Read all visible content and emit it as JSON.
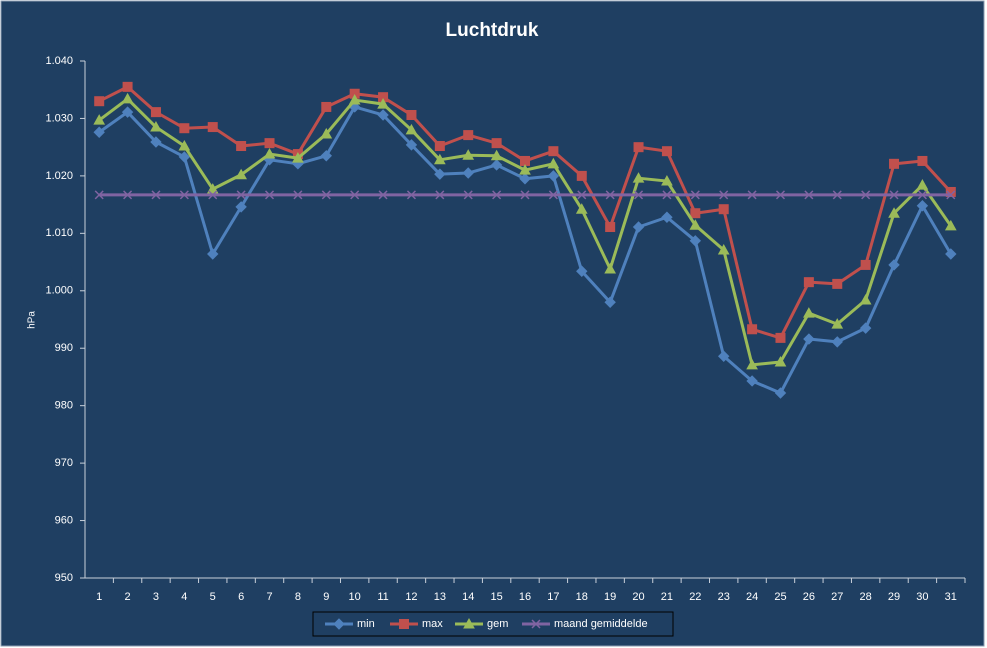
{
  "chart_data": {
    "type": "line",
    "title": "Luchtdruk",
    "y_label": "hPa",
    "categories": [
      "1",
      "2",
      "3",
      "4",
      "5",
      "6",
      "7",
      "8",
      "9",
      "10",
      "11",
      "12",
      "13",
      "14",
      "15",
      "16",
      "17",
      "18",
      "19",
      "20",
      "21",
      "22",
      "23",
      "24",
      "25",
      "26",
      "27",
      "28",
      "29",
      "30",
      "31"
    ],
    "series": [
      {
        "name": "min",
        "color": "#4f81bd",
        "marker": "diamond",
        "values": [
          1027.6,
          1031.1,
          1025.9,
          1023.3,
          1006.4,
          1014.6,
          1022.8,
          1022.1,
          1023.5,
          1032.0,
          1030.6,
          1025.4,
          1020.3,
          1020.5,
          1021.9,
          1019.5,
          1020.0,
          1003.4,
          998.0,
          1011.1,
          1012.8,
          1008.7,
          988.6,
          984.3,
          982.2,
          991.6,
          991.1,
          993.5,
          1004.5,
          1014.8,
          1006.4
        ]
      },
      {
        "name": "max",
        "color": "#c0504d",
        "marker": "square",
        "values": [
          1033.0,
          1035.5,
          1031.1,
          1028.3,
          1028.5,
          1025.2,
          1025.7,
          1023.8,
          1032.0,
          1034.3,
          1033.7,
          1030.6,
          1025.2,
          1027.1,
          1025.7,
          1022.6,
          1024.3,
          1020.0,
          1011.1,
          1025.0,
          1024.3,
          1013.5,
          1014.2,
          993.3,
          991.8,
          1001.5,
          1001.2,
          1004.5,
          1022.1,
          1022.6,
          1017.2
        ]
      },
      {
        "name": "gem",
        "color": "#9bbb59",
        "marker": "triangle",
        "values": [
          1029.7,
          1033.4,
          1028.5,
          1025.2,
          1017.7,
          1020.2,
          1023.8,
          1023.1,
          1027.3,
          1033.2,
          1032.5,
          1028.0,
          1022.8,
          1023.6,
          1023.5,
          1021.0,
          1022.1,
          1014.2,
          1003.8,
          1019.6,
          1019.1,
          1011.4,
          1007.1,
          987.1,
          987.6,
          996.1,
          994.2,
          998.4,
          1013.5,
          1018.4,
          1011.3
        ]
      },
      {
        "name": "maand gemiddelde",
        "color": "#8064a2",
        "marker": "x",
        "values": [
          1016.7,
          1016.7,
          1016.7,
          1016.7,
          1016.7,
          1016.7,
          1016.7,
          1016.7,
          1016.7,
          1016.7,
          1016.7,
          1016.7,
          1016.7,
          1016.7,
          1016.7,
          1016.7,
          1016.7,
          1016.7,
          1016.7,
          1016.7,
          1016.7,
          1016.7,
          1016.7,
          1016.7,
          1016.7,
          1016.7,
          1016.7,
          1016.7,
          1016.7,
          1016.7,
          1016.7
        ]
      }
    ],
    "ylim": [
      950,
      1040
    ],
    "yticks": [
      950,
      960,
      970,
      980,
      990,
      {
        "value": 1000,
        "label": "1.000"
      },
      {
        "value": 1010,
        "label": "1.010"
      },
      {
        "value": 1020,
        "label": "1.020"
      },
      {
        "value": 1030,
        "label": "1.030"
      },
      {
        "value": 1040,
        "label": "1.040"
      }
    ],
    "legend": "bottom",
    "grid": false
  }
}
